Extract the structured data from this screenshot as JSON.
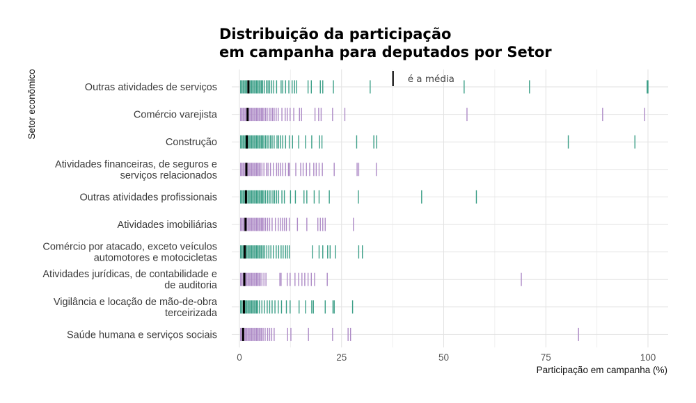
{
  "chart_data": {
    "type": "strip",
    "title_lines": [
      "Distribuição da participação",
      "em campanha para deputados por Setor"
    ],
    "xlabel": "Participação em campanha (%)",
    "ylabel": "Setor econômico",
    "xlim": [
      -2,
      105
    ],
    "xticks": [
      0,
      25,
      50,
      75,
      100
    ],
    "legend_text": "é a média",
    "colors": {
      "green": "#3a9e86",
      "purple": "#ad8ac6",
      "mean": "#000000"
    },
    "categories": [
      {
        "label_lines": [
          "Outras atividades de serviços"
        ],
        "color": "green",
        "mean": 2.2,
        "values": [
          0.3,
          0.6,
          0.9,
          1.2,
          1.5,
          1.8,
          2.1,
          2.4,
          2.7,
          3.0,
          3.3,
          3.6,
          3.9,
          4.2,
          4.5,
          4.8,
          5.1,
          5.4,
          5.7,
          6.1,
          6.6,
          7.0,
          7.4,
          7.9,
          8.4,
          9.1,
          10.2,
          10.6,
          11.3,
          12.1,
          12.9,
          13.5,
          14.0,
          16.8,
          17.6,
          19.8,
          20.4,
          23.0,
          32.0,
          55.0,
          71.0,
          99.8,
          100.0
        ]
      },
      {
        "label_lines": [
          "Comércio varejista"
        ],
        "color": "purple",
        "mean": 2.0,
        "values": [
          0.3,
          0.6,
          0.9,
          1.2,
          1.5,
          1.8,
          2.1,
          2.4,
          2.7,
          3.0,
          3.3,
          3.6,
          3.9,
          4.2,
          4.5,
          4.8,
          5.1,
          5.4,
          5.7,
          6.0,
          6.4,
          6.8,
          7.3,
          7.7,
          8.1,
          8.5,
          9.0,
          9.5,
          10.4,
          11.2,
          11.7,
          12.4,
          13.3,
          14.7,
          15.2,
          18.5,
          19.4,
          20.0,
          22.8,
          25.8,
          55.7,
          88.9,
          99.2
        ]
      },
      {
        "label_lines": [
          "Construção"
        ],
        "color": "green",
        "mean": 1.8,
        "values": [
          0.3,
          0.6,
          0.9,
          1.2,
          1.5,
          1.8,
          2.1,
          2.4,
          2.7,
          3.0,
          3.3,
          3.6,
          3.9,
          4.2,
          4.5,
          4.8,
          5.1,
          5.4,
          5.7,
          6.0,
          6.4,
          6.8,
          7.2,
          7.6,
          8.0,
          8.5,
          9.2,
          9.6,
          10.1,
          10.6,
          11.3,
          12.2,
          13.0,
          14.5,
          16.2,
          17.7,
          19.6,
          20.2,
          28.7,
          32.9,
          33.6,
          80.5,
          96.8
        ]
      },
      {
        "label_lines": [
          "Atividades financeiras, de seguros e",
          "serviços relacionados"
        ],
        "color": "purple",
        "mean": 1.7,
        "values": [
          0.3,
          0.6,
          0.9,
          1.2,
          1.5,
          1.8,
          2.1,
          2.4,
          2.7,
          3.0,
          3.3,
          3.6,
          3.9,
          4.2,
          4.5,
          4.8,
          5.1,
          5.5,
          6.0,
          6.6,
          7.0,
          7.6,
          8.3,
          9.1,
          9.6,
          10.1,
          10.6,
          11.3,
          12.0,
          12.3,
          13.8,
          15.0,
          15.6,
          16.4,
          17.2,
          18.2,
          18.8,
          19.5,
          20.3,
          23.2,
          28.8,
          29.2,
          33.5
        ]
      },
      {
        "label_lines": [
          "Outras atividades profissionais"
        ],
        "color": "green",
        "mean": 1.6,
        "values": [
          0.3,
          0.6,
          0.9,
          1.2,
          1.5,
          1.8,
          2.1,
          2.4,
          2.7,
          3.0,
          3.3,
          3.6,
          3.9,
          4.2,
          4.5,
          4.8,
          5.1,
          5.4,
          5.7,
          6.0,
          6.4,
          6.9,
          7.3,
          7.7,
          8.2,
          8.6,
          9.1,
          9.6,
          10.4,
          11.0,
          12.5,
          13.7,
          15.8,
          16.5,
          18.3,
          19.5,
          22.0,
          29.1,
          44.6,
          58.0
        ]
      },
      {
        "label_lines": [
          "Atividades imobiliárias"
        ],
        "color": "purple",
        "mean": 1.5,
        "values": [
          0.3,
          0.6,
          0.9,
          1.2,
          1.5,
          1.8,
          2.1,
          2.4,
          2.7,
          3.0,
          3.3,
          3.6,
          3.9,
          4.2,
          4.5,
          4.8,
          5.1,
          5.4,
          5.7,
          6.0,
          6.4,
          6.9,
          7.4,
          8.0,
          8.8,
          9.5,
          10.0,
          10.5,
          11.0,
          11.5,
          12.2,
          14.2,
          16.5,
          19.2,
          19.8,
          20.4,
          21.0,
          27.9
        ]
      },
      {
        "label_lines": [
          "Comércio por atacado, exceto veículos",
          "automotores e motocicletas"
        ],
        "color": "green",
        "mean": 1.3,
        "values": [
          0.3,
          0.6,
          0.9,
          1.2,
          1.5,
          1.8,
          2.1,
          2.4,
          2.7,
          3.0,
          3.3,
          3.6,
          3.9,
          4.2,
          4.5,
          4.8,
          5.1,
          5.4,
          5.8,
          6.2,
          6.7,
          7.2,
          7.7,
          8.3,
          9.0,
          9.6,
          10.2,
          10.7,
          11.3,
          11.7,
          12.2,
          17.9,
          19.5,
          20.4,
          21.6,
          22.2,
          23.5,
          29.2,
          30.1
        ]
      },
      {
        "label_lines": [
          "Atividades jurídicas, de contabilidade e",
          "de auditoria"
        ],
        "color": "purple",
        "mean": 1.2,
        "values": [
          0.3,
          0.6,
          0.9,
          1.2,
          1.5,
          1.8,
          2.1,
          2.4,
          2.7,
          3.0,
          3.3,
          3.6,
          3.9,
          4.2,
          4.5,
          4.8,
          5.1,
          5.5,
          6.0,
          6.5,
          9.9,
          10.2,
          11.7,
          12.4,
          13.6,
          14.5,
          15.3,
          16.0,
          16.8,
          17.6,
          18.4,
          21.5,
          69.0
        ]
      },
      {
        "label_lines": [
          "Vigilância e locação de mão-de-obra",
          "terceirizada"
        ],
        "color": "green",
        "mean": 1.1,
        "values": [
          0.3,
          0.6,
          0.9,
          1.2,
          1.5,
          1.8,
          2.1,
          2.4,
          2.7,
          3.0,
          3.3,
          3.6,
          3.9,
          4.2,
          4.5,
          4.9,
          5.5,
          6.1,
          6.8,
          7.4,
          8.0,
          8.7,
          9.5,
          10.3,
          11.5,
          12.4,
          14.6,
          16.2,
          17.7,
          18.1,
          21.0,
          22.9,
          23.2,
          27.7
        ]
      },
      {
        "label_lines": [
          "Saúde humana e serviços sociais"
        ],
        "color": "purple",
        "mean": 0.9,
        "values": [
          0.3,
          0.6,
          0.9,
          1.2,
          1.5,
          1.8,
          2.1,
          2.4,
          2.7,
          3.0,
          3.3,
          3.6,
          3.9,
          4.2,
          4.5,
          4.8,
          5.1,
          5.4,
          5.8,
          6.3,
          6.9,
          7.4,
          7.9,
          8.5,
          11.8,
          12.6,
          16.9,
          22.8,
          26.6,
          27.2,
          83.0
        ]
      }
    ]
  }
}
